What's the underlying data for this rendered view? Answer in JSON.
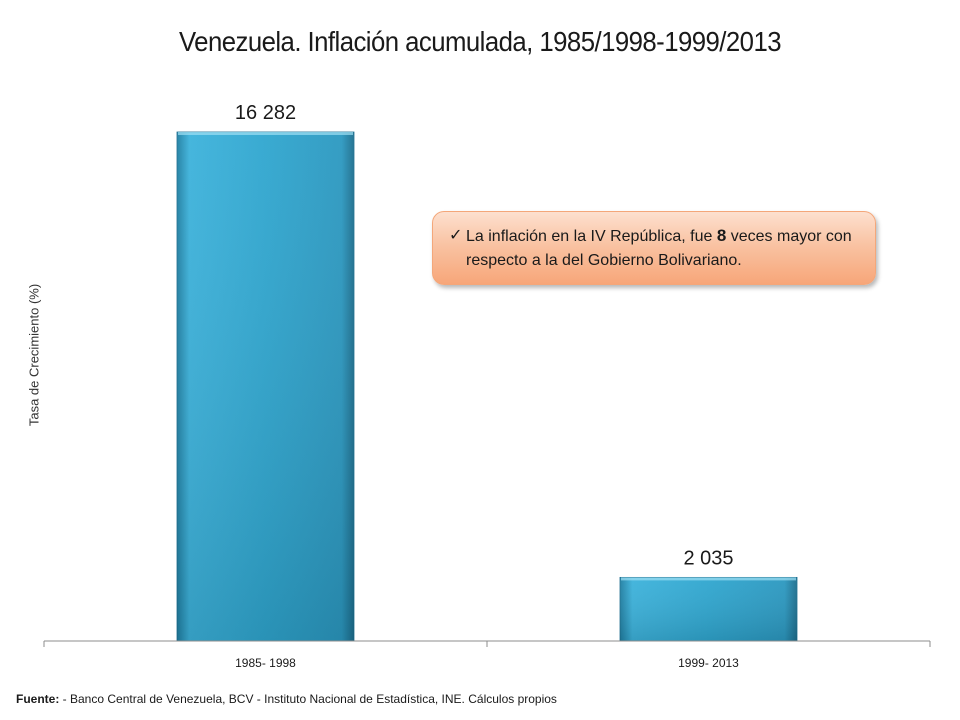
{
  "chart_data": {
    "type": "bar",
    "title": "Venezuela. Inflación acumulada, 1985/1998-1999/2013",
    "ylabel": "Tasa de Crecimiento (%)",
    "xlabel": "",
    "categories": [
      "1985- 1998",
      "1999- 2013"
    ],
    "values": [
      16282,
      2035
    ],
    "value_labels": [
      "16 282",
      "2 035"
    ],
    "ylim": [
      0,
      16282
    ],
    "grid": false,
    "bar_color": "#2b9bc2"
  },
  "callout": {
    "check": "✓",
    "text_before": "La inflación en la IV República, fue ",
    "highlight": "8",
    "text_after": " veces mayor con respecto a la del  Gobierno Bolivariano."
  },
  "footer": {
    "label": "Fuente:",
    "text": " - Banco Central de Venezuela, BCV  - Instituto Nacional de Estadística, INE. Cálculos propios"
  }
}
